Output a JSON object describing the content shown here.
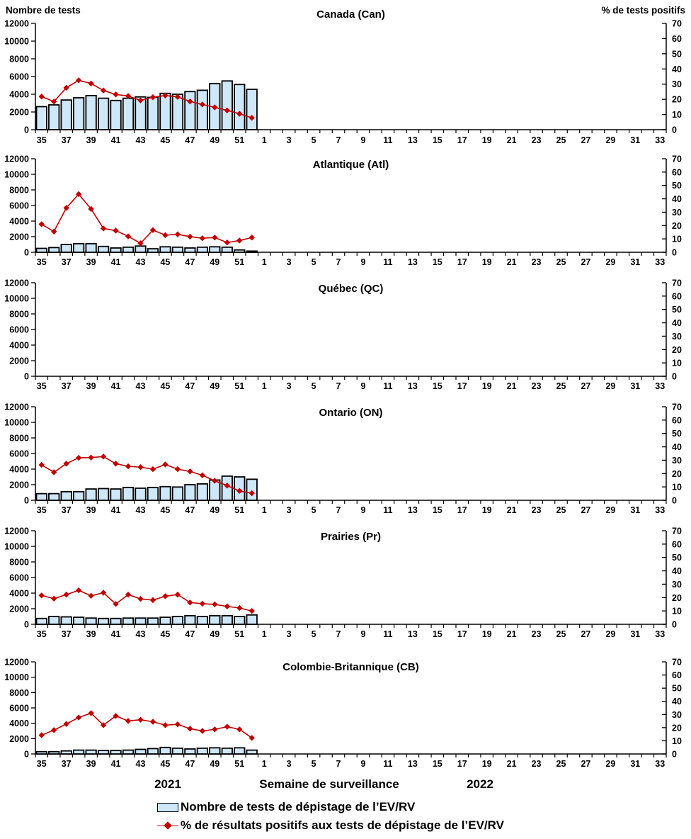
{
  "colors": {
    "bar_fill": "#CEE7F9",
    "bar_stroke": "#000000",
    "line": "#C00000",
    "axis": "#000000"
  },
  "footer": {
    "year_left": "2021",
    "x_axis_title": "Semaine de surveillance",
    "year_right": "2022",
    "legend": [
      {
        "type": "bar",
        "label": "Nombre de tests de dépistage de l’EV/RV"
      },
      {
        "type": "line",
        "label": "% de résultats positifs aux tests de dépistage de l’EV/RV"
      }
    ]
  },
  "chart_data": {
    "type": "bar",
    "note": "combo bar+line, bars on left axis, pct line on right axis, 6 stacked panels",
    "layout": {
      "left_axis": {
        "title": "Nombre de tests",
        "min": 0,
        "max": 12000,
        "step": 2000
      },
      "right_axis": {
        "title": "% de tests positifs",
        "min": 0,
        "max": 70,
        "step": 10
      },
      "x_axis": {
        "weeks_2021": [
          35,
          36,
          37,
          38,
          39,
          40,
          41,
          42,
          43,
          44,
          45,
          46,
          47,
          48,
          49,
          50,
          51,
          52
        ],
        "weeks_2022": [
          1,
          2,
          3,
          4,
          5,
          6,
          7,
          8,
          9,
          10,
          11,
          12,
          13,
          14,
          15,
          16,
          17,
          18,
          19,
          20,
          21,
          22,
          23,
          24,
          25,
          26,
          27,
          28,
          29,
          30,
          31,
          32,
          33
        ],
        "labels_shown": "odd weeks only",
        "grid": "off",
        "legend_position": "bottom"
      }
    },
    "panels": [
      {
        "title": "Canada (Can)",
        "bars_weeks_35_to_52": [
          2600,
          2800,
          3350,
          3600,
          3850,
          3550,
          3300,
          3550,
          3700,
          3650,
          4100,
          4000,
          4300,
          4450,
          5200,
          5500,
          5100,
          4550
        ],
        "pct_positive_weeks_35_to_52": [
          21.8,
          18.5,
          27.6,
          32.5,
          30.4,
          25.8,
          23.2,
          22.2,
          19.3,
          21.4,
          22.5,
          21.6,
          18.6,
          16.6,
          14.7,
          12.7,
          10.5,
          7.8
        ]
      },
      {
        "title": "Atlantique (Atl)",
        "bars_weeks_35_to_52": [
          500,
          600,
          1000,
          1100,
          1100,
          750,
          550,
          650,
          800,
          450,
          700,
          650,
          550,
          650,
          700,
          650,
          300,
          150
        ],
        "pct_positive_weeks_35_to_52": [
          21,
          15.5,
          33.2,
          43.5,
          32.4,
          17.8,
          16.2,
          11.9,
          6.7,
          16.6,
          12.8,
          13.4,
          11.7,
          10.5,
          11,
          7.3,
          8.8,
          11
        ]
      },
      {
        "title": "Québec (QC)",
        "bars_weeks_35_to_52": [],
        "pct_positive_weeks_35_to_52": []
      },
      {
        "title": "Ontario (ON)",
        "bars_weeks_35_to_52": [
          850,
          850,
          1100,
          1100,
          1450,
          1500,
          1450,
          1650,
          1550,
          1650,
          1750,
          1700,
          2000,
          2100,
          2600,
          3100,
          3000,
          2700
        ],
        "pct_positive_weeks_35_to_52": [
          26.5,
          21,
          27.4,
          31.8,
          32,
          32.7,
          27.4,
          25.4,
          24.8,
          23.3,
          26.8,
          23.3,
          21.6,
          18.7,
          14.6,
          11,
          7,
          5.3
        ]
      },
      {
        "title": "Prairies (Pr)",
        "bars_weeks_35_to_52": [
          750,
          1000,
          950,
          900,
          800,
          750,
          750,
          800,
          800,
          800,
          900,
          1000,
          1100,
          1000,
          1100,
          1100,
          1000,
          1200
        ],
        "pct_positive_weeks_35_to_52": [
          21.6,
          19.2,
          22.2,
          25.4,
          21.3,
          23.6,
          15.2,
          22.2,
          19,
          18.1,
          21,
          22.2,
          16.3,
          15.4,
          14.9,
          13.4,
          12.2,
          10
        ]
      },
      {
        "title": "Colombie-Britannique (CB)",
        "bars_weeks_35_to_52": [
          300,
          300,
          400,
          500,
          500,
          450,
          450,
          500,
          600,
          700,
          850,
          750,
          650,
          750,
          800,
          750,
          800,
          500
        ],
        "pct_positive_weeks_35_to_52": [
          14.3,
          18.1,
          22.8,
          27.7,
          31,
          21.9,
          28.9,
          25.1,
          26,
          24.5,
          21.9,
          22.5,
          19.2,
          17.5,
          18.7,
          20.7,
          18.7,
          12.2
        ]
      }
    ]
  }
}
